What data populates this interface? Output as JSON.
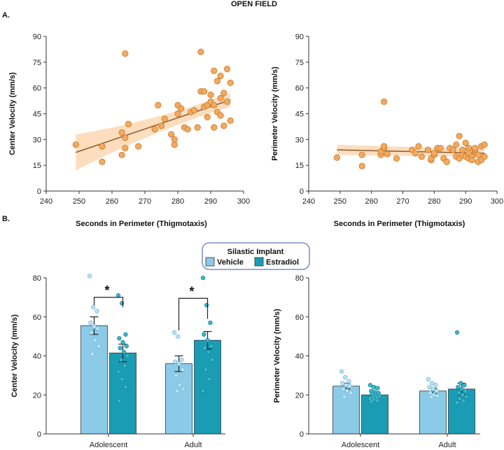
{
  "figure_title": "OPEN FIELD",
  "panel_labels": {
    "a": "A.",
    "b": "B."
  },
  "legend": {
    "title": "Silastic Implant",
    "items": [
      {
        "label": "Vehicle",
        "color": "#8ccbe8"
      },
      {
        "label": "Estradiol",
        "color": "#1a9cb5"
      }
    ]
  },
  "colors": {
    "scatter_point": "#f2aa60",
    "scatter_edge": "#c8782a",
    "trend_line": "#8a5a2c",
    "ci_band": "#fbd3aa",
    "vehicle": "#8ccbe8",
    "estradiol": "#1a9cb5"
  },
  "chart_data": [
    {
      "type": "scatter",
      "title": "",
      "xlabel": "Seconds in Perimeter (Thigmotaxis)",
      "ylabel": "Center Velocity (mm/s)",
      "xlim": [
        240,
        300
      ],
      "ylim": [
        0,
        90
      ],
      "xticks": [
        240,
        250,
        260,
        270,
        280,
        290,
        300
      ],
      "yticks": [
        0,
        15,
        30,
        45,
        60,
        75,
        90
      ],
      "x": [
        249,
        257,
        257,
        263,
        263,
        264,
        264,
        264,
        265,
        268,
        273,
        274,
        275,
        276,
        278,
        279,
        279,
        280,
        280,
        281,
        282,
        283,
        284,
        285,
        286,
        287,
        287,
        288,
        288,
        289,
        289,
        290,
        290,
        291,
        291,
        291,
        292,
        292,
        293,
        293,
        293,
        294,
        294,
        295,
        295,
        296,
        296
      ],
      "y": [
        27,
        26,
        17,
        21,
        34,
        25,
        31,
        80,
        39,
        26,
        36,
        50,
        38,
        42,
        33,
        27,
        30,
        45,
        50,
        48,
        37,
        36,
        46,
        47,
        37,
        58,
        81,
        49,
        58,
        50,
        43,
        52,
        56,
        37,
        50,
        70,
        64,
        46,
        44,
        67,
        54,
        38,
        57,
        71,
        52,
        41,
        63
      ],
      "trend": {
        "x": [
          249,
          296
        ],
        "y": [
          22.5,
          53.0
        ],
        "ci_low": [
          12,
          49
        ],
        "ci_high": [
          33,
          57
        ]
      }
    },
    {
      "type": "scatter",
      "title": "",
      "xlabel": "Seconds in Perimeter (Thigmotaxis)",
      "ylabel": "Perimeter Velocity (mm/s)",
      "xlim": [
        240,
        300
      ],
      "ylim": [
        0,
        90
      ],
      "xticks": [
        240,
        250,
        260,
        270,
        280,
        290,
        300
      ],
      "yticks": [
        0,
        15,
        30,
        45,
        60,
        75,
        90
      ],
      "x": [
        249,
        257,
        257,
        263,
        263,
        264,
        264,
        264,
        265,
        268,
        273,
        274,
        275,
        276,
        278,
        279,
        279,
        280,
        280,
        281,
        282,
        283,
        284,
        285,
        286,
        287,
        287,
        288,
        288,
        289,
        289,
        290,
        290,
        291,
        291,
        291,
        292,
        292,
        293,
        293,
        293,
        294,
        294,
        295,
        295,
        296,
        296
      ],
      "y": [
        19.5,
        14.5,
        21,
        21,
        23,
        25,
        26,
        52,
        21.5,
        19,
        24,
        22,
        26,
        20,
        24,
        18,
        19,
        21,
        22,
        25,
        25,
        19,
        17,
        25,
        24,
        20,
        27,
        32,
        19,
        21,
        24,
        20,
        28,
        19,
        25,
        22,
        20,
        18,
        23,
        24,
        25,
        17,
        21,
        18,
        26,
        20,
        27
      ],
      "trend": {
        "x": [
          249,
          296
        ],
        "y": [
          24,
          22
        ],
        "ci_low": [
          21,
          20
        ],
        "ci_high": [
          27,
          24.5
        ]
      }
    },
    {
      "type": "bar",
      "title": "",
      "xlabel": "",
      "ylabel": "Center Velocity (mm/s)",
      "ylim": [
        0,
        80
      ],
      "yticks": [
        0,
        20,
        40,
        60,
        80
      ],
      "categories": [
        "Adolescent",
        "Adult"
      ],
      "series": [
        {
          "name": "Vehicle",
          "values": [
            55.5,
            36
          ],
          "sem": [
            4.5,
            4
          ],
          "points": [
            [
              81,
              65,
              63,
              57,
              55,
              54,
              52,
              48,
              45,
              41
            ],
            [
              52,
              50,
              38,
              37,
              36,
              33,
              30,
              25,
              23,
              22
            ]
          ]
        },
        {
          "name": "Estradiol",
          "values": [
            41.5,
            48
          ],
          "sem": [
            4.5,
            4.5
          ],
          "points": [
            [
              71,
              67,
              51,
              49,
              47,
              45,
              44,
              42,
              40,
              38,
              35,
              32,
              28,
              24,
              17
            ],
            [
              80,
              66,
              57,
              51,
              48,
              45,
              44,
              42,
              38,
              33,
              28,
              22
            ]
          ]
        }
      ],
      "significance": [
        {
          "category": "Adolescent",
          "label": "*"
        },
        {
          "category": "Adult",
          "label": "*"
        }
      ]
    },
    {
      "type": "bar",
      "title": "",
      "xlabel": "",
      "ylabel": "Perimeter Velocity  (mm/s)",
      "ylim": [
        0,
        80
      ],
      "yticks": [
        0,
        20,
        40,
        60,
        80
      ],
      "categories": [
        "Adolescent",
        "Adult"
      ],
      "series": [
        {
          "name": "Vehicle",
          "values": [
            24.5,
            22
          ],
          "sem": [
            1.5,
            1.3
          ],
          "points": [
            [
              32,
              29,
              27,
              26,
              25,
              24.5,
              23,
              22,
              21,
              19
            ],
            [
              28,
              26,
              25,
              24,
              23,
              22,
              21,
              20,
              19.5,
              19
            ]
          ]
        },
        {
          "name": "Estradiol",
          "values": [
            20,
            23
          ],
          "sem": [
            1,
            3
          ],
          "points": [
            [
              25,
              24,
              23.5,
              22,
              21.5,
              21,
              20.5,
              20,
              19.5,
              19,
              18.5,
              18,
              17.5,
              17,
              16.5
            ],
            [
              52,
              26,
              25,
              24,
              23,
              22,
              21,
              20,
              19,
              18,
              17,
              16
            ]
          ]
        }
      ]
    }
  ]
}
